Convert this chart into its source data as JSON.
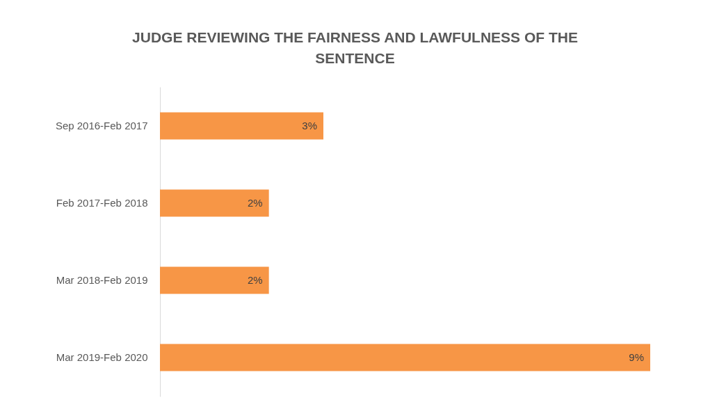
{
  "chart_data": {
    "type": "bar",
    "orientation": "horizontal",
    "title": "JUDGE REVIEWING THE FAIRNESS AND LAWFULNESS OF THE SENTENCE",
    "categories": [
      "Sep 2016-Feb 2017",
      "Feb 2017-Feb 2018",
      "Mar 2018-Feb 2019",
      "Mar 2019-Feb 2020"
    ],
    "values": [
      3,
      2,
      2,
      9
    ],
    "value_labels": [
      "3%",
      "2%",
      "2%",
      "9%"
    ],
    "color": "#f79646",
    "grid": false
  }
}
